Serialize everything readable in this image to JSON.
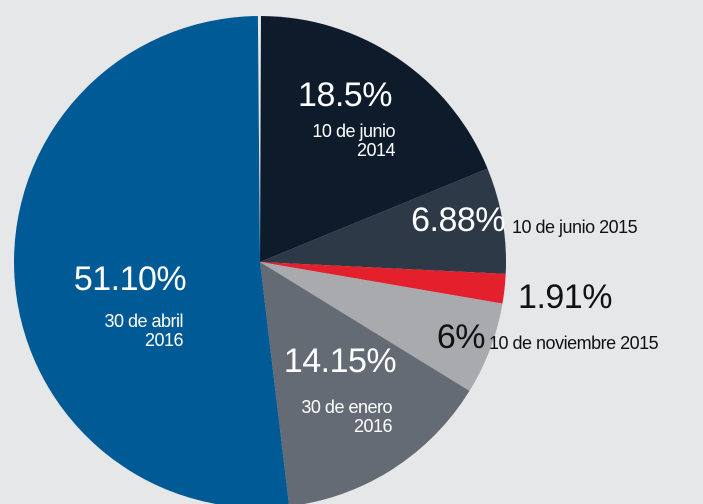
{
  "chart_data": {
    "type": "pie",
    "categories": [
      "10 de junio 2014",
      "10 de junio 2015",
      null,
      "10 de noviembre 2015",
      "30 de enero 2016",
      "30 de abril 2016"
    ],
    "values": [
      18.5,
      6.88,
      1.91,
      6,
      14.15,
      51.1
    ],
    "value_labels": [
      "18.5%",
      "6.88%",
      "1.91%",
      "6%",
      "14.15%",
      "51.10%"
    ],
    "colors": [
      "#0e1b2b",
      "#2e3947",
      "#e3202b",
      "#a8aaad",
      "#646b74",
      "#005a96"
    ]
  }
}
